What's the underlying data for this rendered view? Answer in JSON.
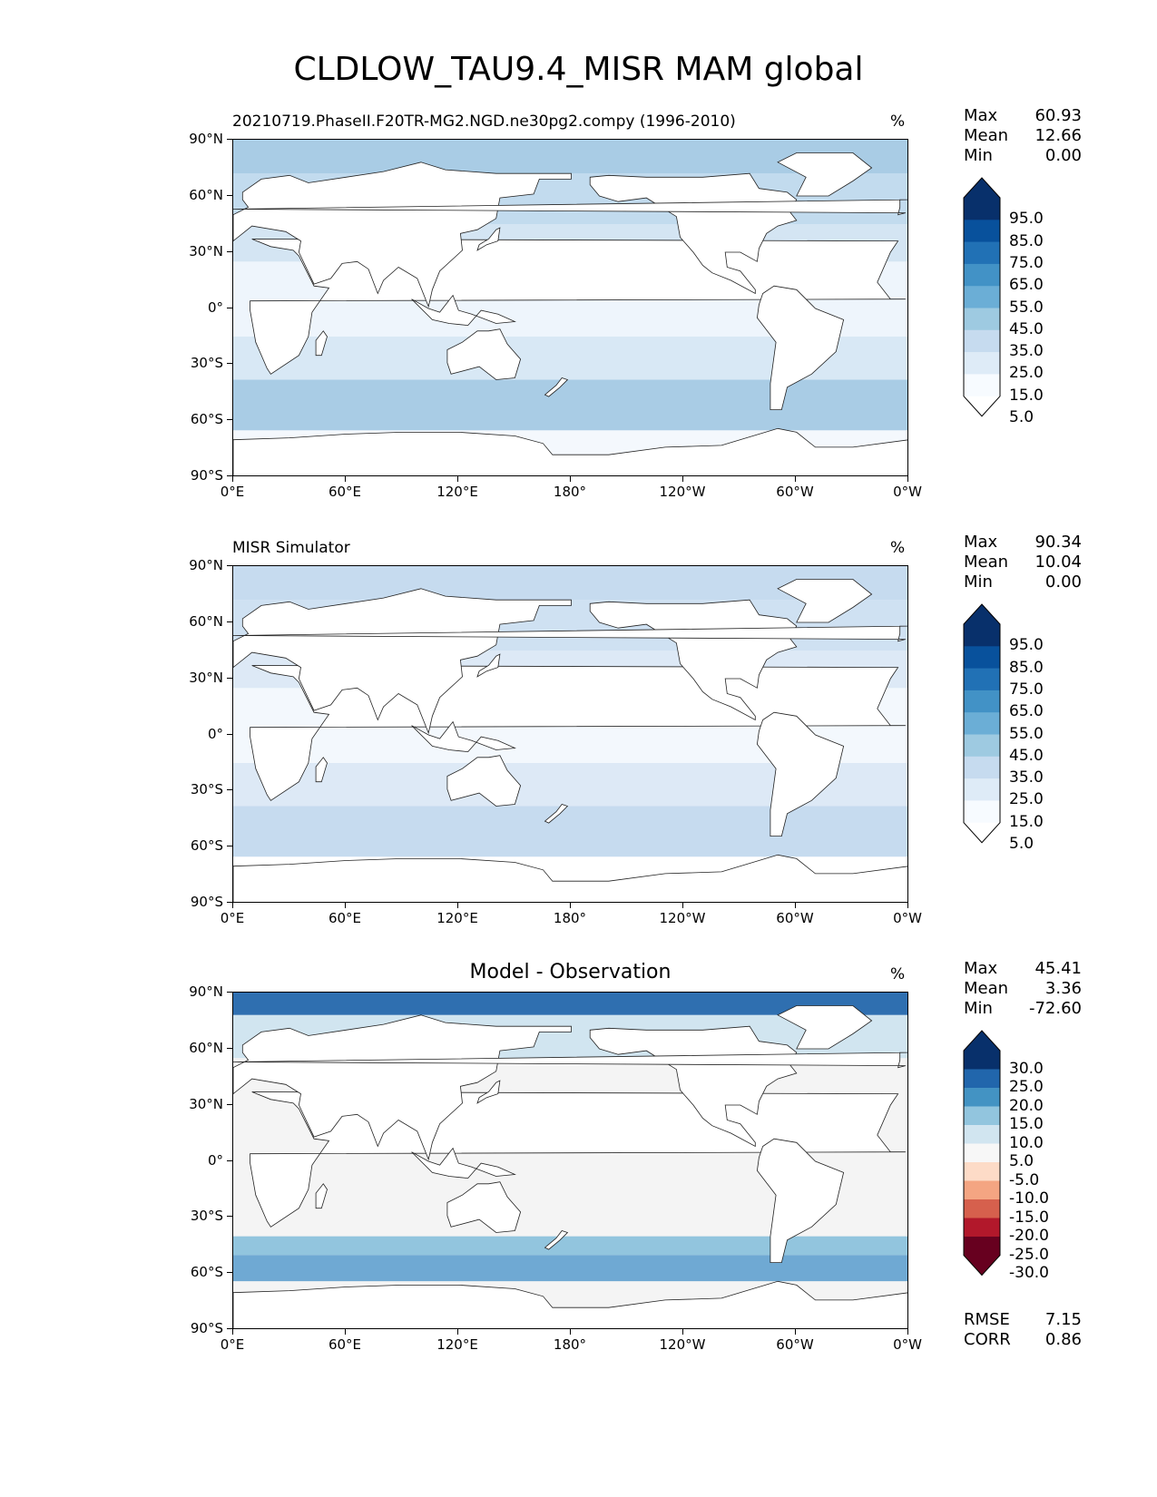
{
  "figure": {
    "title": "CLDLOW_TAU9.4_MISR MAM global"
  },
  "axes": {
    "y_ticks": [
      "90°N",
      "60°N",
      "30°N",
      "0°",
      "30°S",
      "60°S",
      "90°S"
    ],
    "x_ticks": [
      "0°E",
      "60°E",
      "120°E",
      "180°",
      "120°W",
      "60°W",
      "0°W"
    ]
  },
  "panels": [
    {
      "subtitle": "20210719.PhaseII.F20TR-MG2.NGD.ne30pg2.compy (1996-2010)",
      "center_title": "",
      "units": "%",
      "stats": [
        {
          "label": "Max",
          "value": "60.93"
        },
        {
          "label": "Mean",
          "value": "12.66"
        },
        {
          "label": "Min",
          "value": "0.00"
        }
      ],
      "colorbar": {
        "labels": [
          "95.0",
          "85.0",
          "75.0",
          "65.0",
          "55.0",
          "45.0",
          "35.0",
          "25.0",
          "15.0",
          "5.0"
        ],
        "colors": [
          "#08306b",
          "#08519c",
          "#2171b5",
          "#4292c6",
          "#6baed6",
          "#9ecae1",
          "#c6dbef",
          "#deebf7",
          "#f7fbff"
        ],
        "extend_colors": {
          "top": "#08306b",
          "bottom": "#ffffff"
        }
      },
      "footer_stats": []
    },
    {
      "subtitle": "MISR Simulator",
      "center_title": "",
      "units": "%",
      "stats": [
        {
          "label": "Max",
          "value": "90.34"
        },
        {
          "label": "Mean",
          "value": "10.04"
        },
        {
          "label": "Min",
          "value": "0.00"
        }
      ],
      "colorbar": {
        "labels": [
          "95.0",
          "85.0",
          "75.0",
          "65.0",
          "55.0",
          "45.0",
          "35.0",
          "25.0",
          "15.0",
          "5.0"
        ],
        "colors": [
          "#08306b",
          "#08519c",
          "#2171b5",
          "#4292c6",
          "#6baed6",
          "#9ecae1",
          "#c6dbef",
          "#deebf7",
          "#f7fbff"
        ],
        "extend_colors": {
          "top": "#08306b",
          "bottom": "#ffffff"
        }
      },
      "footer_stats": []
    },
    {
      "subtitle": "",
      "center_title": "Model - Observation",
      "units": "%",
      "stats": [
        {
          "label": "Max",
          "value": "45.41"
        },
        {
          "label": "Mean",
          "value": "3.36"
        },
        {
          "label": "Min",
          "value": "-72.60"
        }
      ],
      "colorbar": {
        "labels": [
          "30.0",
          "25.0",
          "20.0",
          "15.0",
          "10.0",
          "5.0",
          "-5.0",
          "-10.0",
          "-15.0",
          "-20.0",
          "-25.0",
          "-30.0"
        ],
        "colors": [
          "#08306b",
          "#2166ac",
          "#4393c3",
          "#92c5de",
          "#d1e5f0",
          "#f7f7f7",
          "#fddbc7",
          "#f4a582",
          "#d6604d",
          "#b2182b",
          "#67001f"
        ],
        "extend_colors": {
          "top": "#08306b",
          "bottom": "#67001f"
        }
      },
      "footer_stats": [
        {
          "label": "RMSE",
          "value": "7.15"
        },
        {
          "label": "CORR",
          "value": "0.86"
        }
      ]
    }
  ],
  "colors": {
    "ocean_model": "#d6e6f4",
    "ocean_obs": "#e6f0fa",
    "ocean_diff": "#f4f4f4",
    "high_lat_model": "#a9cce5",
    "high_lat_obs": "#c6dbef",
    "high_lat_diff": "#6fa9d3",
    "land": "#ffffff",
    "coast": "#222222"
  }
}
